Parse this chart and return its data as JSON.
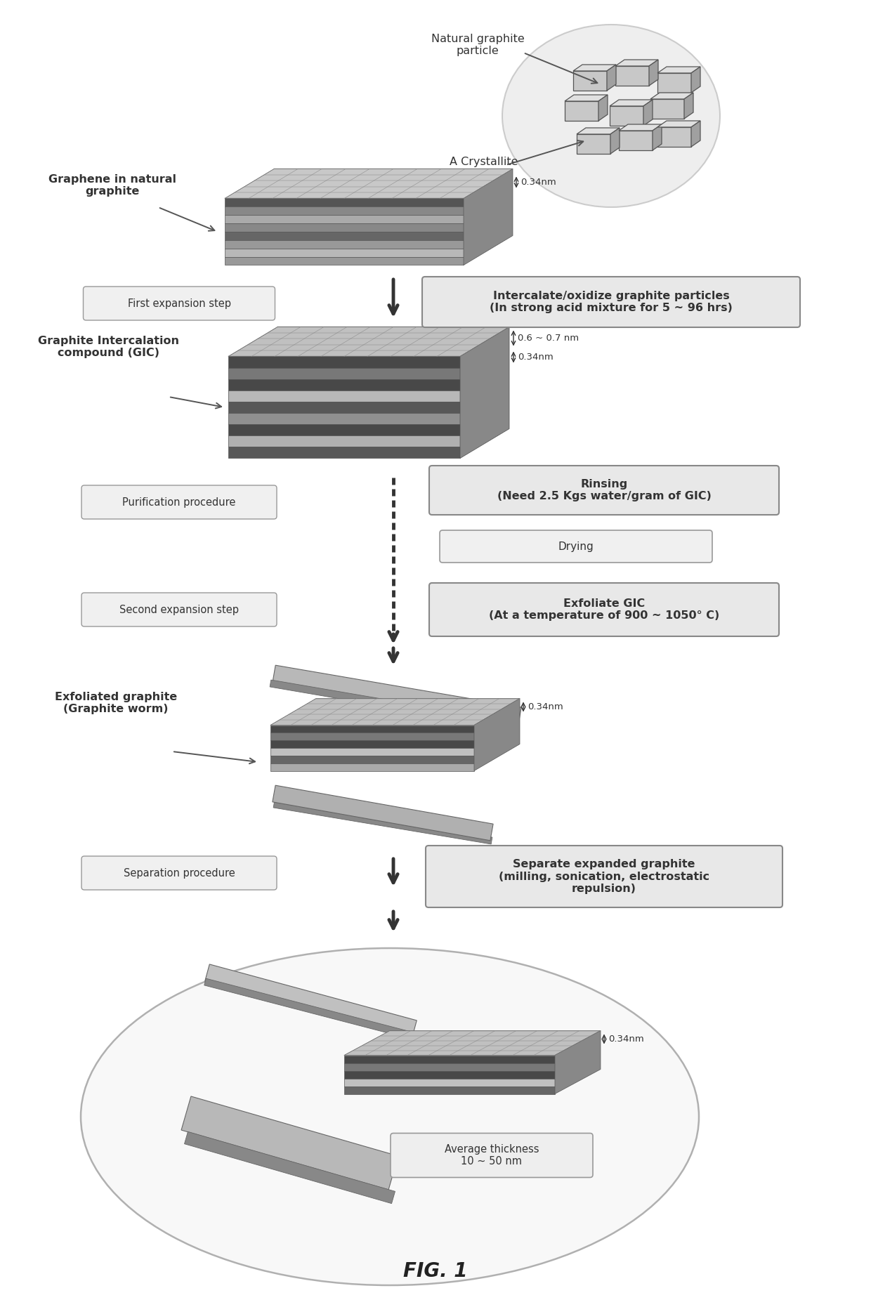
{
  "title": "FIG. 1",
  "bg_color": "#ffffff",
  "labels": {
    "natural_graphite_particle": "Natural graphite\nparticle",
    "a_crystallite": "A Crystallite",
    "graphene_in_natural": "Graphene in natural\ngraphite",
    "nm034_1": "0.34nm",
    "first_expansion": "First expansion step",
    "intercalate": "Intercalate/oxidize graphite particles\n(In strong acid mixture for 5 ~ 96 hrs)",
    "gic_label": "Graphite Intercalation\ncompound (GIC)",
    "nm067": "0.6 ~ 0.7 nm",
    "nm034_2": "0.34nm",
    "purification": "Purification procedure",
    "rinsing": "Rinsing\n(Need 2.5 Kgs water/gram of GIC)",
    "drying": "Drying",
    "second_expansion": "Second expansion step",
    "exfoliate_gic": "Exfoliate GIC\n(At a temperature of 900 ~ 1050° C)",
    "exfoliated_graphite": "Exfoliated graphite\n(Graphite worm)",
    "nm034_3": "0.34nm",
    "separation": "Separation procedure",
    "separate_expanded": "Separate expanded graphite\n(milling, sonication, electrostatic\nrepulsion)",
    "nm034_4": "0.34nm",
    "avg_thickness": "Average thickness\n10 ~ 50 nm"
  }
}
